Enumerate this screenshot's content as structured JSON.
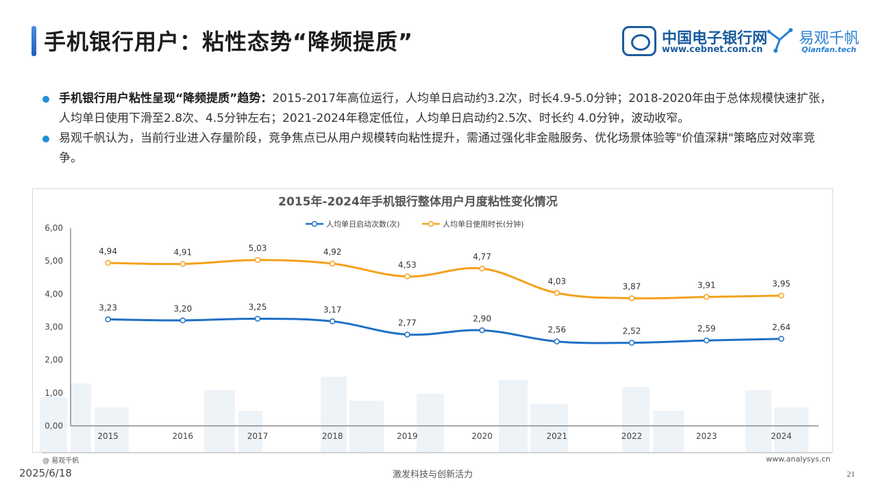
{
  "header": {
    "title": "手机银行用户：粘性态势“降频提质”",
    "cebnet_name": "中国电子银行网",
    "cebnet_url": "www.cebnet.com.cn",
    "qianfan_name": "易观千帆",
    "qianfan_en": "Qianfan.tech"
  },
  "bullets": [
    {
      "lead": "手机银行用户粘性呈现“降频提质”趋势：",
      "text": "2015-2017年高位运行，人均单日启动约3.2次，时长4.9-5.0分钟；2018-2020年由于总体规模快速扩张，人均单日使用下滑至2.8次、4.5分钟左右；2021-2024年稳定低位，人均单日启动约2.5次、时长约 4.0分钟，波动收窄。"
    },
    {
      "lead": "",
      "text": "易观千帆认为，当前行业进入存量阶段，竞争焦点已从用户规模转向粘性提升，需通过强化非金融服务、优化场景体验等\"价值深耕\"策略应对效率竞争。"
    }
  ],
  "chart_data": {
    "type": "line",
    "title": "2015年-2024年手机银行整体用户月度粘性变化情况",
    "xlabel": "",
    "ylabel": "",
    "categories": [
      "2015",
      "2016",
      "2017",
      "2018",
      "2019",
      "2020",
      "2021",
      "2022",
      "2023",
      "2024"
    ],
    "ylim": [
      0,
      6
    ],
    "yticks": [
      "0,00",
      "1,00",
      "2,00",
      "3,00",
      "4,00",
      "5,00",
      "6,00"
    ],
    "legend_position": "top-center",
    "series": [
      {
        "name": "人均单日启动次数(次)",
        "color": "#1f6fc5",
        "values": [
          3.23,
          3.2,
          3.25,
          3.17,
          2.77,
          2.9,
          2.56,
          2.52,
          2.59,
          2.64
        ],
        "labels": [
          "3,23",
          "3,20",
          "3,25",
          "3,17",
          "2,77",
          "2,90",
          "2,56",
          "2,52",
          "2,59",
          "2,64"
        ]
      },
      {
        "name": "人均单日使用时长(分钟)",
        "color": "#f4a11c",
        "values": [
          4.94,
          4.91,
          5.03,
          4.92,
          4.53,
          4.77,
          4.03,
          3.87,
          3.91,
          3.95
        ],
        "labels": [
          "4,94",
          "4,91",
          "5,03",
          "4,92",
          "4,53",
          "4,77",
          "4,03",
          "3,87",
          "3,91",
          "3,95"
        ]
      }
    ]
  },
  "chart_footer": {
    "source": "@ 易观千帆",
    "site": "www.analysys.cn"
  },
  "footer": {
    "date": "2025/6/18",
    "slogan": "激发科技与创新活力",
    "page": "21"
  }
}
